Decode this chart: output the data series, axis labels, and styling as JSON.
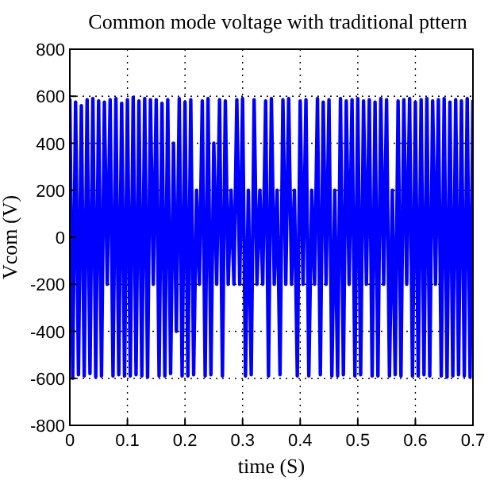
{
  "chart_data": {
    "type": "line",
    "title": "Common mode voltage with traditional pttern",
    "xlabel": "time (S)",
    "ylabel": "Vcom (V)",
    "xlim": [
      0,
      0.7
    ],
    "xticks": [
      0,
      0.1,
      0.2,
      0.3,
      0.4,
      0.5,
      0.6,
      0.7
    ],
    "ylim": [
      -800,
      800
    ],
    "yticks": [
      -800,
      -600,
      -400,
      -200,
      0,
      200,
      400,
      600,
      800
    ],
    "grid": true,
    "marker": "none",
    "line_style": "solid",
    "series": [
      {
        "color": "#0000ff",
        "x": [
          0,
          0.005,
          0.01,
          0.015,
          0.02,
          0.025,
          0.03,
          0.035,
          0.04,
          0.045,
          0.05,
          0.055,
          0.06,
          0.065,
          0.07,
          0.075,
          0.08,
          0.085,
          0.09,
          0.095,
          0.1,
          0.105,
          0.11,
          0.115,
          0.12,
          0.125,
          0.13,
          0.135,
          0.14,
          0.145,
          0.15,
          0.155,
          0.16,
          0.165,
          0.17,
          0.175,
          0.18,
          0.185,
          0.19,
          0.195,
          0.2,
          0.205,
          0.21,
          0.215,
          0.22,
          0.225,
          0.23,
          0.235,
          0.24,
          0.245,
          0.25,
          0.255,
          0.26,
          0.265,
          0.27,
          0.275,
          0.28,
          0.285,
          0.29,
          0.295,
          0.3,
          0.305,
          0.31,
          0.315,
          0.32,
          0.325,
          0.33,
          0.335,
          0.34,
          0.345,
          0.35,
          0.355,
          0.36,
          0.365,
          0.37,
          0.375,
          0.38,
          0.385,
          0.39,
          0.395,
          0.4,
          0.405,
          0.41,
          0.415,
          0.42,
          0.425,
          0.43,
          0.435,
          0.44,
          0.445,
          0.45,
          0.455,
          0.46,
          0.465,
          0.47,
          0.475,
          0.48,
          0.485,
          0.49,
          0.495,
          0.5,
          0.505,
          0.51,
          0.515,
          0.52,
          0.525,
          0.53,
          0.535,
          0.54,
          0.545,
          0.55,
          0.555,
          0.56,
          0.565,
          0.57,
          0.575,
          0.58,
          0.585,
          0.59,
          0.595,
          0.6,
          0.605,
          0.61,
          0.615,
          0.62,
          0.625,
          0.63,
          0.635,
          0.64,
          0.645,
          0.65,
          0.655,
          0.66,
          0.665,
          0.67,
          0.675,
          0.68,
          0.685,
          0.69,
          0.695,
          0.7
        ],
        "values": [
          590,
          -600,
          575,
          -585,
          560,
          -590,
          585,
          -580,
          590,
          -595,
          580,
          -590,
          575,
          -200,
          585,
          -590,
          590,
          -585,
          570,
          -590,
          585,
          -590,
          595,
          -585,
          580,
          -590,
          590,
          -595,
          585,
          -200,
          585,
          -590,
          570,
          -590,
          585,
          -580,
          400,
          -400,
          590,
          -590,
          575,
          -590,
          585,
          -585,
          200,
          -200,
          580,
          -590,
          590,
          -585,
          400,
          -200,
          585,
          -590,
          580,
          -200,
          200,
          -200,
          585,
          -200,
          590,
          -590,
          200,
          -585,
          585,
          -200,
          200,
          -200,
          580,
          -590,
          590,
          -200,
          200,
          -585,
          585,
          -200,
          590,
          -200,
          200,
          -590,
          580,
          -200,
          585,
          -590,
          200,
          -200,
          590,
          -585,
          575,
          -200,
          585,
          -590,
          200,
          -590,
          590,
          -585,
          580,
          -200,
          585,
          -590,
          590,
          -585,
          580,
          -200,
          585,
          -590,
          575,
          -590,
          590,
          -200,
          585,
          -590,
          200,
          -585,
          580,
          -590,
          585,
          -200,
          590,
          -590,
          575,
          -590,
          585,
          -585,
          590,
          -590,
          580,
          -200,
          585,
          -590,
          590,
          -595,
          575,
          -590,
          585,
          -585,
          580,
          -590,
          590,
          -595,
          585
        ]
      }
    ]
  }
}
